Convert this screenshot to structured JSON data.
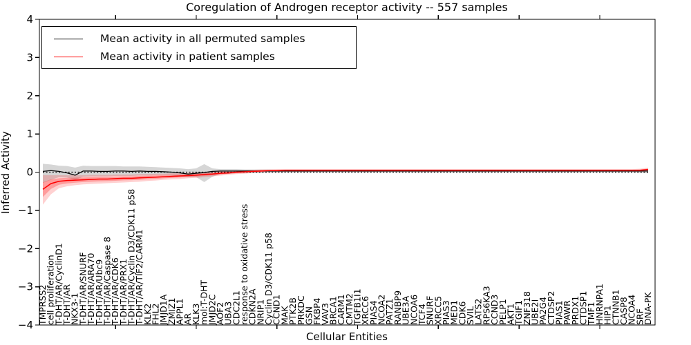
{
  "figure": {
    "title": "Coregulation of Androgen receptor activity -- 557 samples"
  },
  "legend": {
    "position": "upper left",
    "items": [
      {
        "label": "Mean activity in all permuted samples",
        "color": "#000000"
      },
      {
        "label": "Mean activity in patient samples",
        "color": "#ff0000"
      }
    ]
  },
  "chart_data": {
    "type": "line",
    "title": "Coregulation of Androgen receptor activity -- 557 samples",
    "xlabel": "Cellular Entities",
    "ylabel": "Inferred Activity",
    "ylim": [
      -4,
      4
    ],
    "yticks": [
      -4,
      -3,
      -2,
      -1,
      0,
      1,
      2,
      3,
      4
    ],
    "x_major_tick_indices": [
      9,
      19,
      29,
      39,
      49,
      59,
      69
    ],
    "grid": false,
    "zero_line": true,
    "legend_position": "upper left",
    "colors": {
      "permuted": "#000000",
      "patient": "#ff0000",
      "permuted_band": "rgba(0,0,0,0.16)",
      "patient_band": "rgba(255,0,0,0.18)",
      "patient_band_inner": "rgba(255,0,0,0.25)"
    },
    "categories": [
      "TMPRSS2",
      "cell proliferation",
      "T-DHT/AR/CyclinD1",
      "T-DHT/AR",
      "NKX3-1",
      "T-DHT/AR/SNURF",
      "T-DHT/AR/ARA70",
      "T-DHT/AR/Ubc9",
      "T-DHT/AR/Caspase 8",
      "T-DHT/AR/CDK6",
      "T-DHT/AR/PRX1",
      "T-DHT/AR/Cyclin D3/CDK11 p58",
      "T-DHT/AR/TIF2/CARM1",
      "KLK2",
      "FHL2",
      "JMJD1A",
      "ZMIZ1",
      "APPL1",
      "AR",
      "KLK3",
      "mol:T-DHT",
      "JMJD2C",
      "AOF2",
      "UBA3",
      "CDC2L1",
      "response to oxidative stress",
      "CDKN2A",
      "NRIP1",
      "Cyclin D3/CDK11 p58",
      "CCND1",
      "MAK",
      "PTK2B",
      "PRKDC",
      "GSN",
      "FKBP4",
      "VAV3",
      "BRCA1",
      "CARM1",
      "CMTM2",
      "TGFB1I1",
      "XRCC6",
      "PIAS4",
      "NCOA2",
      "PATZ1",
      "RANBP9",
      "UBE3A",
      "NCOA6",
      "TCF4",
      "SNURF",
      "XRCC5",
      "PIAS3",
      "MED1",
      "CDK6",
      "SVIL",
      "LATS2",
      "RPS6KA3",
      "CCND3",
      "PELP1",
      "AKT1",
      "TGIF1",
      "ZNF318",
      "UBE2I",
      "PA2G4",
      "CTDSP2",
      "PIAS1",
      "PAWR",
      "PRDX1",
      "CTDSP1",
      "TMF1",
      "HNRNPA1",
      "HIP1",
      "CTNNB1",
      "CASP8",
      "NCOA4",
      "SRF",
      "DNA-PK"
    ],
    "series": [
      {
        "name": "Mean activity in all permuted samples",
        "color": "#000000",
        "values": [
          0.02,
          0.04,
          0.02,
          -0.02,
          -0.08,
          0.03,
          0.03,
          0.02,
          0.02,
          0.03,
          0.03,
          0.02,
          0.03,
          0.02,
          0.02,
          0.01,
          0.0,
          -0.02,
          -0.05,
          -0.03,
          -0.01,
          0.02,
          0.03,
          0.03,
          0.03,
          0.03,
          0.03,
          0.03,
          0.03,
          0.03,
          0.03,
          0.03,
          0.03,
          0.03,
          0.03,
          0.03,
          0.03,
          0.03,
          0.03,
          0.03,
          0.03,
          0.03,
          0.03,
          0.03,
          0.03,
          0.03,
          0.03,
          0.03,
          0.03,
          0.03,
          0.03,
          0.03,
          0.03,
          0.03,
          0.03,
          0.03,
          0.03,
          0.03,
          0.03,
          0.03,
          0.03,
          0.03,
          0.03,
          0.03,
          0.03,
          0.03,
          0.03,
          0.03,
          0.03,
          0.03,
          0.03,
          0.03,
          0.03,
          0.03,
          0.03,
          0.03
        ],
        "band_hi": [
          0.22,
          0.2,
          0.17,
          0.16,
          0.12,
          0.17,
          0.16,
          0.16,
          0.16,
          0.16,
          0.15,
          0.15,
          0.15,
          0.14,
          0.13,
          0.12,
          0.11,
          0.1,
          0.08,
          0.1,
          0.21,
          0.1,
          0.08,
          0.08,
          0.08,
          0.07,
          0.07,
          0.07,
          0.07,
          0.06,
          0.06,
          0.06,
          0.06,
          0.06,
          0.06,
          0.06,
          0.06,
          0.06,
          0.05,
          0.05,
          0.05,
          0.05,
          0.05,
          0.05,
          0.05,
          0.05,
          0.05,
          0.05,
          0.05,
          0.05,
          0.05,
          0.05,
          0.05,
          0.05,
          0.05,
          0.05,
          0.05,
          0.05,
          0.05,
          0.05,
          0.05,
          0.05,
          0.05,
          0.05,
          0.05,
          0.05,
          0.05,
          0.05,
          0.05,
          0.05,
          0.05,
          0.05,
          0.05,
          0.05,
          0.06,
          0.08
        ],
        "band_lo": [
          -0.28,
          -0.2,
          -0.13,
          -0.14,
          -0.2,
          -0.12,
          -0.11,
          -0.11,
          -0.11,
          -0.1,
          -0.1,
          -0.1,
          -0.09,
          -0.09,
          -0.08,
          -0.08,
          -0.09,
          -0.11,
          -0.13,
          -0.13,
          -0.26,
          -0.12,
          -0.05,
          -0.04,
          -0.03,
          -0.02,
          -0.02,
          -0.02,
          -0.01,
          -0.01,
          -0.01,
          -0.01,
          -0.01,
          -0.01,
          -0.01,
          -0.01,
          -0.01,
          -0.01,
          -0.01,
          -0.01,
          -0.01,
          -0.01,
          -0.01,
          -0.01,
          -0.01,
          -0.01,
          -0.01,
          -0.01,
          -0.01,
          -0.01,
          -0.01,
          -0.01,
          -0.01,
          -0.01,
          -0.01,
          -0.01,
          -0.01,
          -0.01,
          -0.01,
          -0.01,
          -0.01,
          -0.01,
          -0.01,
          -0.01,
          -0.01,
          -0.01,
          -0.01,
          -0.01,
          -0.01,
          -0.01,
          -0.01,
          -0.01,
          -0.01,
          -0.01,
          -0.02,
          -0.03
        ]
      },
      {
        "name": "Mean activity in patient samples",
        "color": "#ff0000",
        "values": [
          -0.45,
          -0.3,
          -0.24,
          -0.22,
          -0.21,
          -0.2,
          -0.19,
          -0.18,
          -0.18,
          -0.17,
          -0.16,
          -0.16,
          -0.15,
          -0.14,
          -0.13,
          -0.12,
          -0.11,
          -0.1,
          -0.09,
          -0.08,
          -0.06,
          -0.05,
          -0.03,
          -0.02,
          0.0,
          0.01,
          0.02,
          0.03,
          0.04,
          0.04,
          0.05,
          0.05,
          0.05,
          0.05,
          0.05,
          0.05,
          0.05,
          0.05,
          0.05,
          0.05,
          0.05,
          0.05,
          0.05,
          0.05,
          0.05,
          0.05,
          0.05,
          0.05,
          0.05,
          0.05,
          0.05,
          0.05,
          0.05,
          0.05,
          0.05,
          0.05,
          0.05,
          0.05,
          0.05,
          0.05,
          0.05,
          0.05,
          0.05,
          0.05,
          0.05,
          0.05,
          0.05,
          0.05,
          0.05,
          0.05,
          0.05,
          0.05,
          0.05,
          0.05,
          0.05,
          0.07
        ],
        "band_hi": [
          -0.08,
          -0.08,
          -0.08,
          -0.08,
          -0.08,
          -0.08,
          -0.07,
          -0.07,
          -0.07,
          -0.06,
          -0.06,
          -0.06,
          -0.05,
          -0.05,
          -0.04,
          -0.04,
          -0.03,
          -0.03,
          -0.02,
          -0.01,
          0.0,
          0.01,
          0.02,
          0.03,
          0.04,
          0.05,
          0.06,
          0.07,
          0.07,
          0.08,
          0.08,
          0.08,
          0.08,
          0.08,
          0.08,
          0.08,
          0.08,
          0.08,
          0.08,
          0.08,
          0.08,
          0.08,
          0.08,
          0.08,
          0.08,
          0.08,
          0.08,
          0.08,
          0.08,
          0.08,
          0.08,
          0.08,
          0.08,
          0.08,
          0.08,
          0.08,
          0.08,
          0.08,
          0.08,
          0.08,
          0.08,
          0.08,
          0.08,
          0.08,
          0.08,
          0.08,
          0.08,
          0.08,
          0.08,
          0.08,
          0.08,
          0.08,
          0.08,
          0.08,
          0.09,
          0.12
        ],
        "band_lo": [
          -0.85,
          -0.58,
          -0.42,
          -0.37,
          -0.34,
          -0.32,
          -0.31,
          -0.3,
          -0.29,
          -0.28,
          -0.27,
          -0.26,
          -0.25,
          -0.23,
          -0.22,
          -0.2,
          -0.19,
          -0.18,
          -0.16,
          -0.15,
          -0.13,
          -0.11,
          -0.09,
          -0.07,
          -0.05,
          -0.04,
          -0.02,
          -0.01,
          0.0,
          0.0,
          0.01,
          0.01,
          0.01,
          0.01,
          0.01,
          0.01,
          0.01,
          0.01,
          0.01,
          0.01,
          0.01,
          0.01,
          0.01,
          0.01,
          0.01,
          0.01,
          0.01,
          0.01,
          0.01,
          0.01,
          0.01,
          0.01,
          0.01,
          0.01,
          0.01,
          0.01,
          0.01,
          0.01,
          0.01,
          0.01,
          0.01,
          0.01,
          0.01,
          0.01,
          0.01,
          0.01,
          0.01,
          0.01,
          0.01,
          0.01,
          0.01,
          0.01,
          0.01,
          0.01,
          0.01,
          0.02
        ]
      }
    ]
  }
}
